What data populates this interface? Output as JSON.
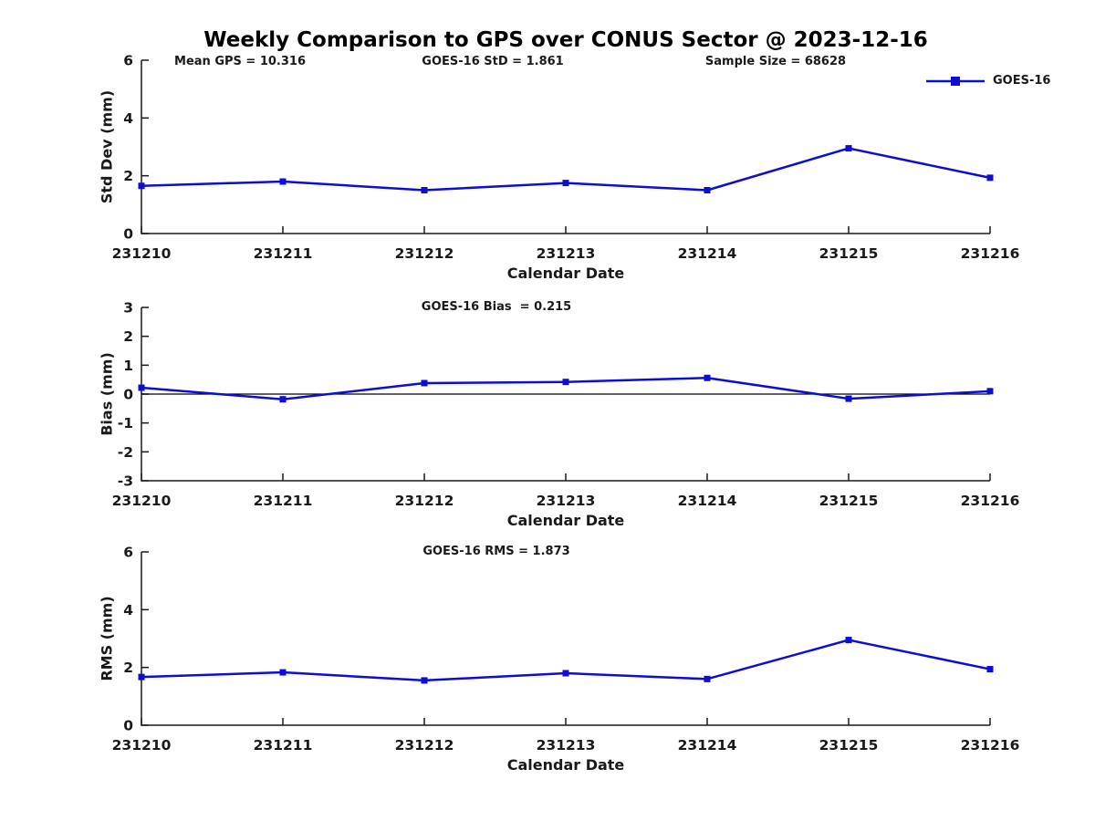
{
  "title": "Weekly Comparison to GPS over CONUS Sector @ 2023-12-16",
  "annotations": {
    "mean_gps": "Mean GPS = 10.316",
    "std": "GOES-16 StD = 1.861",
    "sample_size": "Sample Size = 68628"
  },
  "legend": {
    "label": "GOES-16",
    "position": "top-right-above-first-plot"
  },
  "colors": {
    "line": "#0d0dd3",
    "axis": "#1a1a1a",
    "tick_text": "#1a1a1a",
    "zero_line": "#000000",
    "background": "#ffffff"
  },
  "chart_data": [
    {
      "type": "line",
      "title": "",
      "ylabel": "Std Dev (mm)",
      "xlabel": "Calendar Date",
      "categories": [
        "231210",
        "231211",
        "231212",
        "231213",
        "231214",
        "231215",
        "231216"
      ],
      "series": [
        {
          "name": "GOES-16",
          "values": [
            1.65,
            1.8,
            1.5,
            1.75,
            1.5,
            2.95,
            1.93
          ]
        }
      ],
      "ylim": [
        0,
        6
      ],
      "yticks": [
        0,
        2,
        4,
        6
      ],
      "grid": false,
      "zero_line": false,
      "marker": "square"
    },
    {
      "type": "line",
      "title": "GOES-16 Bias  = 0.215",
      "ylabel": "Bias (mm)",
      "xlabel": "Calendar Date",
      "categories": [
        "231210",
        "231211",
        "231212",
        "231213",
        "231214",
        "231215",
        "231216"
      ],
      "series": [
        {
          "name": "GOES-16",
          "values": [
            0.22,
            -0.18,
            0.38,
            0.42,
            0.56,
            -0.16,
            0.1
          ]
        }
      ],
      "ylim": [
        -3,
        3
      ],
      "yticks": [
        -3,
        -2,
        -1,
        0,
        1,
        2,
        3
      ],
      "grid": false,
      "zero_line": true,
      "marker": "square"
    },
    {
      "type": "line",
      "title": "GOES-16 RMS = 1.873",
      "ylabel": "RMS (mm)",
      "xlabel": "Calendar Date",
      "categories": [
        "231210",
        "231211",
        "231212",
        "231213",
        "231214",
        "231215",
        "231216"
      ],
      "series": [
        {
          "name": "GOES-16",
          "values": [
            1.67,
            1.83,
            1.55,
            1.8,
            1.6,
            2.95,
            1.94
          ]
        }
      ],
      "ylim": [
        0,
        6
      ],
      "yticks": [
        0,
        2,
        4,
        6
      ],
      "grid": false,
      "zero_line": false,
      "marker": "square"
    }
  ]
}
